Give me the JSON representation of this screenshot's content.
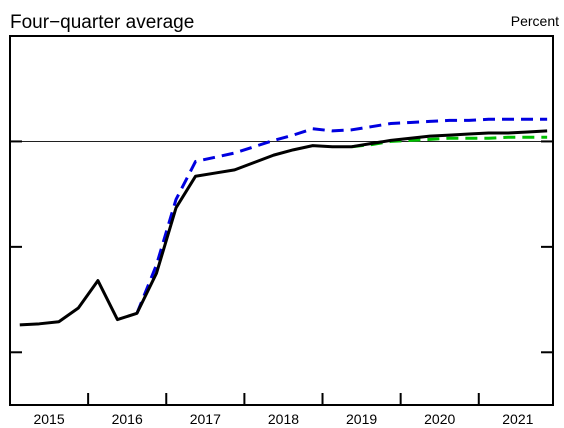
{
  "chart_data": {
    "type": "line",
    "subtitle": "Four−quarter average",
    "unit_label": "Percent",
    "x": [
      2015.125,
      2015.375,
      2015.625,
      2015.875,
      2016.125,
      2016.375,
      2016.625,
      2016.875,
      2017.125,
      2017.375,
      2017.625,
      2017.875,
      2018.125,
      2018.375,
      2018.625,
      2018.875,
      2019.125,
      2019.375,
      2019.625,
      2019.875,
      2020.125,
      2020.375,
      2020.625,
      2020.875,
      2021.125,
      2021.375,
      2021.625,
      2021.875
    ],
    "series": [
      {
        "color": "#0000e0",
        "dash": true,
        "values": [
          null,
          null,
          null,
          null,
          null,
          null,
          -1.63,
          -1.17,
          -0.55,
          -0.19,
          -0.15,
          -0.11,
          -0.05,
          0.01,
          0.06,
          0.12,
          0.1,
          0.11,
          0.14,
          0.17,
          0.18,
          0.19,
          0.2,
          0.2,
          0.21,
          0.21,
          0.21,
          0.21
        ]
      },
      {
        "color": "#00c000",
        "dash": true,
        "values": [
          null,
          null,
          null,
          null,
          null,
          null,
          null,
          null,
          null,
          null,
          null,
          null,
          null,
          null,
          null,
          null,
          null,
          -0.05,
          -0.03,
          0.0,
          0.01,
          0.02,
          0.03,
          0.03,
          0.03,
          0.04,
          0.04,
          0.04
        ]
      },
      {
        "color": "#000000",
        "dash": false,
        "values": [
          -1.74,
          -1.73,
          -1.71,
          -1.58,
          -1.32,
          -1.69,
          -1.63,
          -1.25,
          -0.63,
          -0.33,
          -0.3,
          -0.27,
          -0.2,
          -0.13,
          -0.08,
          -0.04,
          -0.05,
          -0.05,
          -0.02,
          0.01,
          0.03,
          0.05,
          0.06,
          0.07,
          0.08,
          0.08,
          0.09,
          0.1
        ]
      }
    ],
    "xlim": [
      2015,
      2021.95
    ],
    "xticks": [
      {
        "value": 2015.5,
        "label": "2015"
      },
      {
        "value": 2016.5,
        "label": "2016"
      },
      {
        "value": 2017.5,
        "label": "2017"
      },
      {
        "value": 2018.5,
        "label": "2018"
      },
      {
        "value": 2019.5,
        "label": "2019"
      },
      {
        "value": 2020.5,
        "label": "2020"
      },
      {
        "value": 2021.5,
        "label": "2021"
      }
    ],
    "ylim": [
      -2.5,
      1
    ],
    "yticks": [
      -2,
      -1,
      0,
      1
    ],
    "zero_line": true
  }
}
